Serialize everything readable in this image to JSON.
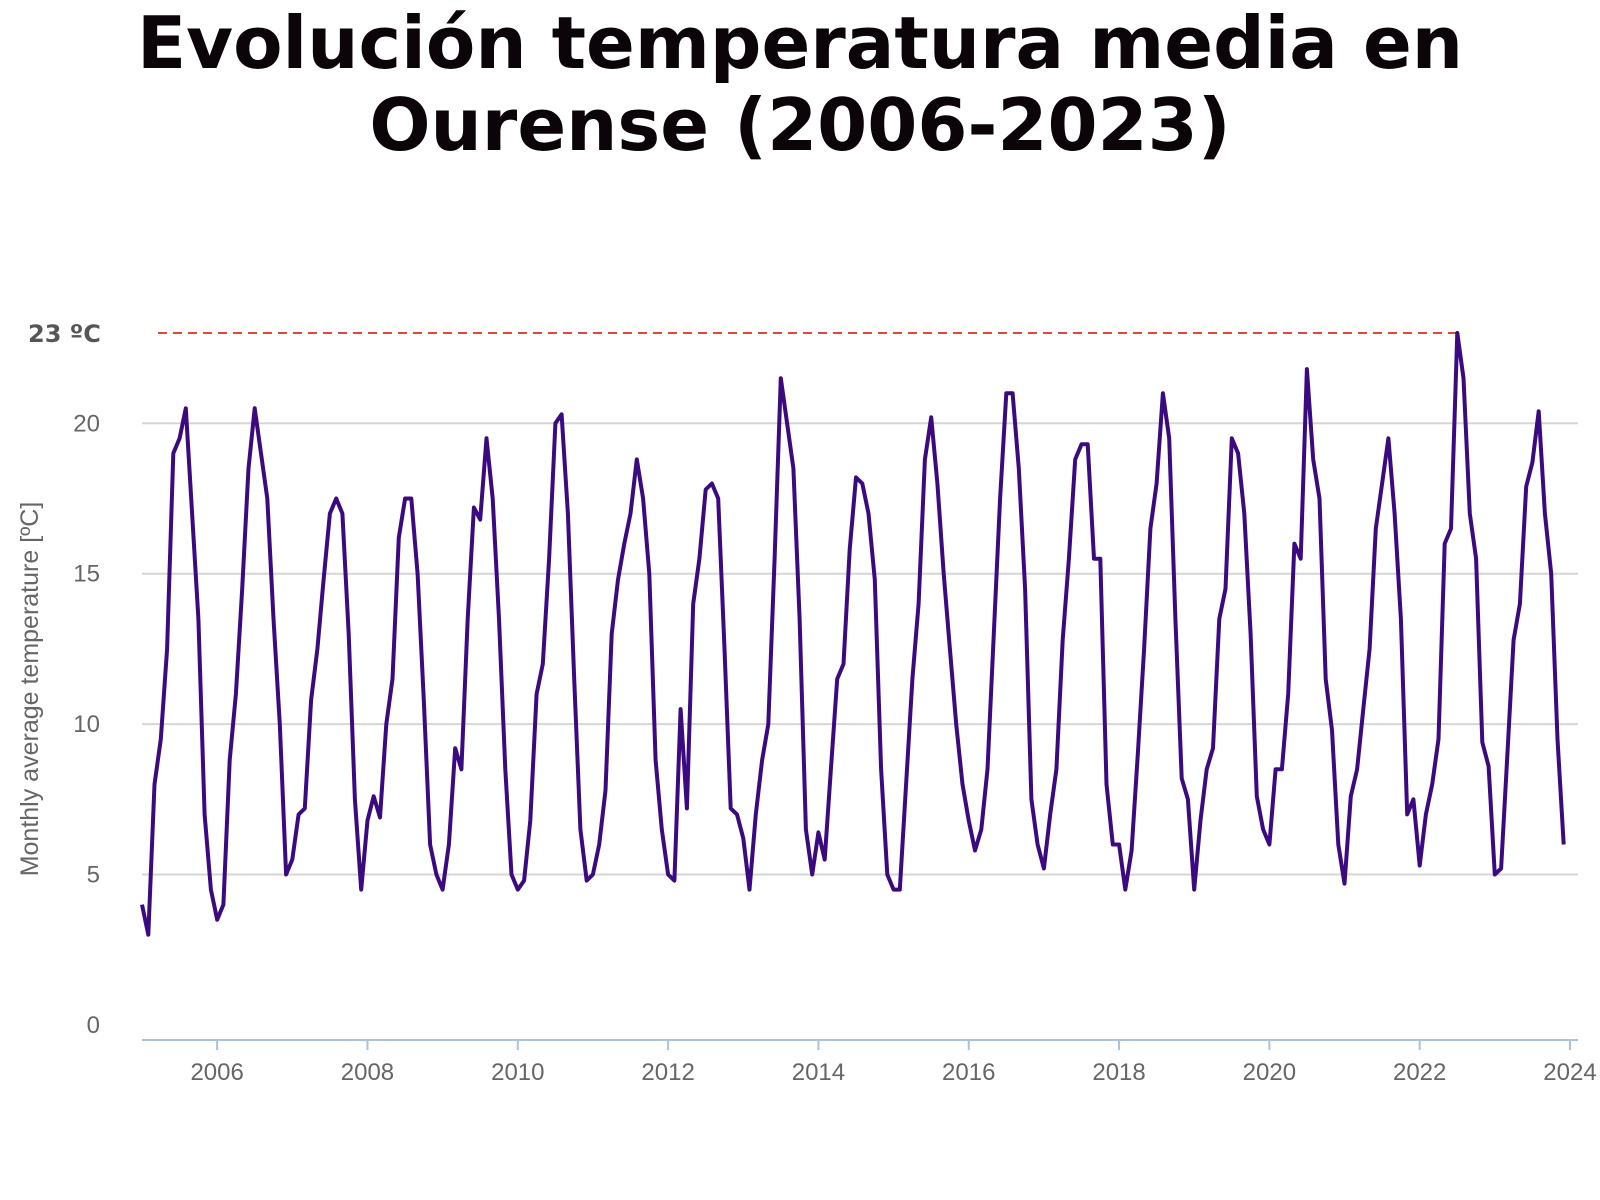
{
  "title": "Evolución temperatura media en Ourense (2006-2023)",
  "colors": {
    "line": "#3c0a80",
    "reference": "#e0483a",
    "grid": "#d6d6d6",
    "axis": "#a9c2d8"
  },
  "chart_data": {
    "type": "line",
    "title": "Evolución temperatura media en Ourense (2006-2023)",
    "ylabel": "Monthly average temperature [ºC]",
    "xlabel": "",
    "xlim": [
      2005.0,
      2024.0
    ],
    "ylim": [
      -0.5,
      23.5
    ],
    "x_ticks": [
      2006,
      2008,
      2010,
      2012,
      2014,
      2016,
      2018,
      2020,
      2022,
      2024
    ],
    "y_ticks": [
      0,
      5,
      10,
      15,
      20
    ],
    "grid": true,
    "reference_line": {
      "value": 23,
      "label": "23 ºC",
      "style": "dashed"
    },
    "start": "2005-01",
    "frequency": "monthly",
    "values": [
      4.0,
      3.0,
      8.0,
      9.5,
      12.5,
      19.0,
      19.5,
      20.5,
      17.0,
      13.5,
      7.0,
      4.5,
      3.5,
      4.0,
      8.8,
      11.0,
      14.5,
      18.5,
      20.5,
      19.0,
      17.5,
      13.5,
      10.0,
      5.0,
      5.5,
      7.0,
      7.2,
      10.8,
      12.5,
      14.8,
      17.0,
      17.5,
      17.0,
      13.0,
      7.5,
      4.5,
      6.8,
      7.6,
      6.9,
      10.0,
      11.5,
      16.2,
      17.5,
      17.5,
      15.0,
      10.8,
      6.0,
      5.0,
      4.5,
      6.0,
      9.2,
      8.5,
      13.5,
      17.2,
      16.8,
      19.5,
      17.5,
      13.5,
      8.5,
      5.0,
      4.5,
      4.8,
      6.8,
      11.0,
      12.0,
      15.5,
      20.0,
      20.3,
      17.0,
      11.5,
      6.5,
      4.8,
      5.0,
      6.0,
      7.8,
      13.0,
      14.8,
      16.0,
      17.0,
      18.8,
      17.5,
      15.0,
      8.8,
      6.5,
      5.0,
      4.8,
      10.5,
      7.2,
      14.0,
      15.5,
      17.8,
      18.0,
      17.5,
      12.5,
      7.2,
      7.0,
      6.2,
      4.5,
      7.0,
      8.8,
      10.0,
      15.5,
      21.5,
      20.0,
      18.5,
      13.5,
      6.5,
      5.0,
      6.4,
      5.5,
      8.5,
      11.5,
      12.0,
      15.8,
      18.2,
      18.0,
      17.0,
      14.8,
      8.5,
      5.0,
      4.5,
      4.5,
      8.0,
      11.5,
      14.0,
      18.8,
      20.2,
      18.0,
      15.0,
      12.5,
      10.0,
      8.0,
      6.8,
      5.8,
      6.5,
      8.5,
      13.0,
      17.5,
      21.0,
      21.0,
      18.5,
      14.5,
      7.5,
      6.0,
      5.2,
      7.0,
      8.5,
      12.8,
      15.5,
      18.8,
      19.3,
      19.3,
      15.5,
      15.5,
      8.0,
      6.0,
      6.0,
      4.5,
      5.8,
      9.0,
      12.5,
      16.5,
      18.0,
      21.0,
      19.5,
      13.5,
      8.2,
      7.5,
      4.5,
      6.8,
      8.5,
      9.2,
      13.5,
      14.5,
      19.5,
      19.0,
      17.0,
      13.0,
      7.6,
      6.5,
      6.0,
      8.5,
      8.5,
      11.0,
      16.0,
      15.5,
      21.8,
      18.8,
      17.5,
      11.5,
      9.8,
      6.0,
      4.7,
      7.6,
      8.5,
      10.5,
      12.5,
      16.5,
      18.0,
      19.5,
      17.0,
      13.5,
      7.0,
      7.5,
      5.3,
      7.0,
      8.0,
      9.5,
      16.0,
      16.5,
      23.0,
      21.5,
      17.0,
      15.5,
      9.4,
      8.6,
      5.0,
      5.2,
      9.0,
      12.8,
      14.0,
      17.9,
      18.7,
      20.4,
      17.0,
      15.0,
      9.5,
      6.0
    ]
  }
}
